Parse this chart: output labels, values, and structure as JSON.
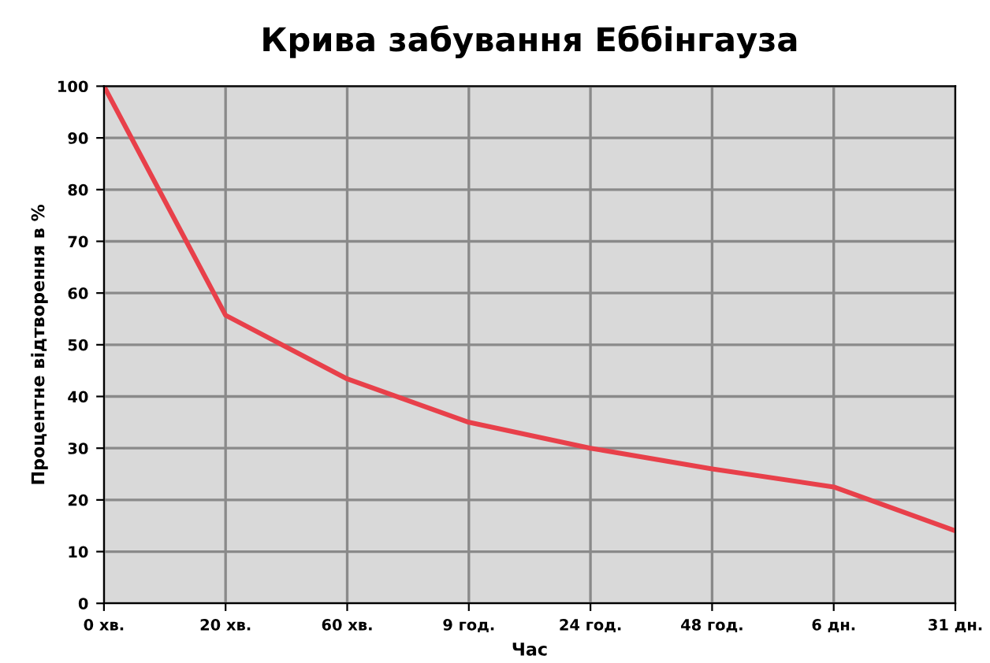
{
  "chart_data": {
    "type": "line",
    "title": "Крива забування Еббінгауза",
    "xlabel": "Час",
    "ylabel": "Процентне відтворення в %",
    "categories": [
      "0 хв.",
      "20 хв.",
      "60 хв.",
      "9 год.",
      "24 год.",
      "48 год.",
      "6 дн.",
      "31 дн."
    ],
    "series": [
      {
        "color": "#e8404a",
        "values": [
          100,
          55.7,
          43.4,
          35,
          30,
          26,
          22.5,
          14
        ]
      }
    ],
    "ylim": [
      0,
      100
    ],
    "yticks": [
      0,
      10,
      20,
      30,
      40,
      50,
      60,
      70,
      80,
      90,
      100
    ],
    "grid": true,
    "marker": "none",
    "line_style": "solid"
  }
}
